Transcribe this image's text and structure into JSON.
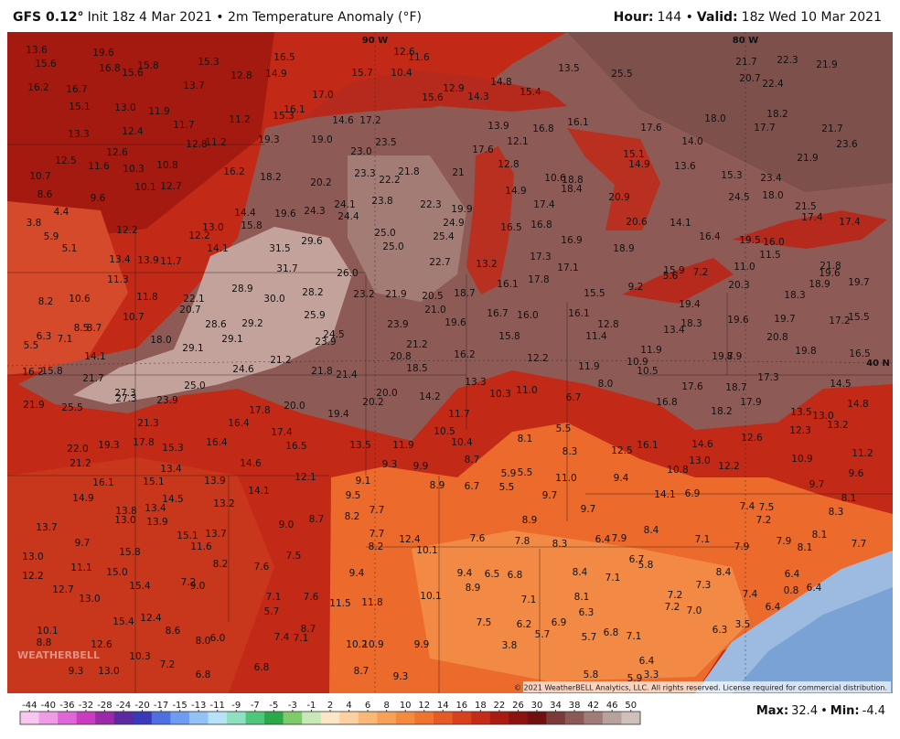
{
  "header": {
    "left": [
      {
        "text": "GFS 0.12°",
        "bold": true
      },
      {
        "text": "Init 18z 4 Mar 2021 • 2m Temperature Anomaly (°F)",
        "bold": false
      }
    ],
    "right": [
      {
        "text": "Hour:",
        "bold": true
      },
      {
        "text": "144 •",
        "bold": false
      },
      {
        "text": "Valid:",
        "bold": true
      },
      {
        "text": "18z Wed 10 Mar 2021",
        "bold": false
      }
    ]
  },
  "map": {
    "lon_labels": [
      "90 W",
      "80 W"
    ],
    "lat_label": "40 N",
    "logo": "WEATHERBELL",
    "copyright": "© 2021 WeatherBELL Analytics, LLC. All rights reserved. License required for commercial distribution.",
    "labels": [
      "13.6",
      "15.6",
      "19.6",
      "16.8",
      "15.6",
      "15.8",
      "15.3",
      "16.5",
      "12.6",
      "11.6",
      "16.2",
      "16.7",
      "13.7",
      "12.8",
      "14.9",
      "15.7",
      "10.4",
      "15.1",
      "13.0",
      "11.9",
      "17.0",
      "15.3",
      "16.1",
      "14.6",
      "17.2",
      "15.6",
      "12.9",
      "14.3",
      "14.8",
      "15.4",
      "13.5",
      "25.5",
      "21.7",
      "22.3",
      "21.9",
      "20.7",
      "22.4",
      "13.3",
      "12.4",
      "11.7",
      "11.2",
      "12.8",
      "11.2",
      "19.3",
      "19.0",
      "23.5",
      "23.0",
      "13.9",
      "12.1",
      "16.8",
      "16.1",
      "17.6",
      "18.0",
      "17.7",
      "18.2",
      "21.7",
      "23.6",
      "12.5",
      "11.6",
      "10.3",
      "10.8",
      "12.6",
      "10.7",
      "10.1",
      "12.7",
      "16.2",
      "18.2",
      "20.2",
      "23.3",
      "22.2",
      "21.8",
      "21",
      "17.6",
      "12.8",
      "10.6",
      "18.8",
      "18.4",
      "15.1",
      "14.9",
      "14.0",
      "13.6",
      "15.3",
      "23.4",
      "21.9",
      "8.6",
      "9.6",
      "4.4",
      "3.8",
      "5.9",
      "12.2",
      "13.0",
      "14.4",
      "15.8",
      "19.6",
      "24.3",
      "24.1",
      "24.4",
      "23.8",
      "22.3",
      "19.9",
      "24.9",
      "14.9",
      "17.4",
      "16.5",
      "16.8",
      "16.9",
      "20.9",
      "20.6",
      "14.1",
      "24.5",
      "18.0",
      "21.5",
      "17.4",
      "17.4",
      "5.1",
      "13.4",
      "13.9",
      "11.7",
      "12.2",
      "14.1",
      "31.5",
      "29.6",
      "25.0",
      "25.0",
      "25.4",
      "22.7",
      "16.4",
      "19.5",
      "16.0",
      "11.5",
      "18.9",
      "17.3",
      "17.1",
      "13.2",
      "21.8",
      "11.3",
      "31.7",
      "26.0",
      "28.9",
      "30.0",
      "28.2",
      "23.2",
      "21.9",
      "20.5",
      "18.7",
      "16.1",
      "17.8",
      "15.9",
      "7.2",
      "11.0",
      "20.3",
      "15.5",
      "9.2",
      "5.6",
      "18.3",
      "18.9",
      "19.6",
      "19.7",
      "8.2",
      "10.6",
      "11.8",
      "22.1",
      "20.7",
      "25.9",
      "21.0",
      "16.7",
      "16.0",
      "16.1",
      "19.4",
      "19.6",
      "19.7",
      "17.2",
      "15.5",
      "10.7",
      "28.6",
      "29.2",
      "23.9",
      "19.6",
      "12.8",
      "18.3",
      "13.4",
      "6.3",
      "7.1",
      "8.5",
      "8.7",
      "5.5",
      "18.0",
      "29.1",
      "24.5",
      "23.9",
      "15.8",
      "11.4",
      "20.8",
      "14.1",
      "29.1",
      "21.2",
      "20.8",
      "16.2",
      "12.2",
      "11.9",
      "10.9",
      "10.5",
      "19.7",
      "8.9",
      "19.8",
      "16.5",
      "16.2",
      "15.8",
      "21.7",
      "24.6",
      "21.2",
      "21.8",
      "21.4",
      "18.5",
      "11.9",
      "17.3",
      "14.5",
      "21.9",
      "25.5",
      "27.3",
      "27.3",
      "23.9",
      "25.0",
      "20.0",
      "20.2",
      "14.2",
      "13.3",
      "10.3",
      "11.0",
      "6.7",
      "8.0",
      "16.8",
      "17.6",
      "18.7",
      "17.9",
      "18.2",
      "13.5",
      "13.0",
      "14.8",
      "17.8",
      "20.0",
      "19.4",
      "11.7",
      "21.3",
      "16.4",
      "17.4",
      "12.3",
      "13.2",
      "5.5",
      "22.0",
      "19.3",
      "17.8",
      "15.3",
      "16.4",
      "16.5",
      "13.5",
      "11.9",
      "10.5",
      "10.4",
      "8.1",
      "8.3",
      "12.5",
      "16.1",
      "14.6",
      "12.6",
      "10.9",
      "11.2",
      "21.2",
      "13.4",
      "14.6",
      "9.3",
      "9.9",
      "8.7",
      "13.0",
      "12.2",
      "9.6",
      "16.1",
      "15.1",
      "13.9",
      "12.1",
      "9.1",
      "5.9",
      "5.5",
      "11.0",
      "9.4",
      "10.8",
      "9.7",
      "8.9",
      "6.7",
      "5.5",
      "14.1",
      "9.5",
      "9.7",
      "14.1",
      "6.9",
      "8.1",
      "14.9",
      "14.5",
      "13.2",
      "13.8",
      "13.4",
      "9.7",
      "7.4",
      "7.5",
      "8.3",
      "13.7",
      "13.0",
      "13.9",
      "9.0",
      "8.7",
      "8.2",
      "7.7",
      "8.9",
      "7.2",
      "15.1",
      "13.7",
      "11.6",
      "9.7",
      "7.7",
      "12.4",
      "10.1",
      "7.6",
      "7.8",
      "8.3",
      "6.4",
      "7.9",
      "8.4",
      "7.1",
      "7.9",
      "7.9",
      "8.1",
      "8.1",
      "15.8",
      "13.0",
      "8.2",
      "7.5",
      "8.2",
      "6.7",
      "5.8",
      "7.7",
      "11.1",
      "15.0",
      "7.6",
      "9.4",
      "9.4",
      "6.5",
      "6.8",
      "8.4",
      "7.1",
      "8.4",
      "6.4",
      "12.2",
      "7.2",
      "15.4",
      "9.0",
      "12.7",
      "8.9",
      "7.3",
      "0.8",
      "6.4",
      "13.0",
      "7.1",
      "7.6",
      "11.5",
      "11.8",
      "10.1",
      "7.1",
      "8.1",
      "7.2",
      "7.4",
      "6.4",
      "7.2",
      "7.0",
      "12.4",
      "5.7",
      "6.3",
      "15.4",
      "7.5",
      "6.2",
      "6.9",
      "3.5",
      "6.3",
      "10.1",
      "8.6",
      "8.7",
      "7.4",
      "7.1",
      "5.7",
      "5.7",
      "6.8",
      "7.1",
      "8.8",
      "12.6",
      "8.0",
      "6.0",
      "10.2",
      "10.9",
      "9.9",
      "3.8",
      "10.3",
      "7.2",
      "6.8",
      "6.4",
      "9.3",
      "13.0",
      "6.8",
      "8.7",
      "9.3",
      "5.8",
      "3.3",
      "5.9"
    ]
  },
  "colorbar": {
    "ticks": [
      -44,
      -40,
      -36,
      -32,
      -28,
      -24,
      -20,
      -17,
      -15,
      -13,
      -11,
      -9,
      -7,
      -5,
      -3,
      -1,
      2,
      4,
      6,
      8,
      10,
      12,
      14,
      16,
      18,
      22,
      26,
      30,
      34,
      38,
      42,
      46,
      50
    ],
    "colors": [
      "#f9c6f0",
      "#f09be6",
      "#e065d6",
      "#c93cbf",
      "#9b2aa8",
      "#5c2aa0",
      "#3a3ab8",
      "#4f6ee0",
      "#6d9cf0",
      "#93c3f5",
      "#b8e2f8",
      "#8ee0c0",
      "#4fc77a",
      "#2aa84a",
      "#7fcb6a",
      "#c8e8b8",
      "#fde6c8",
      "#fcd0a0",
      "#f9b878",
      "#f7a058",
      "#f38a3e",
      "#ee7430",
      "#e65a26",
      "#d8401e",
      "#c42c18",
      "#a81c12",
      "#8c1410",
      "#701010",
      "#7a3a38",
      "#8c5a56",
      "#a07c78",
      "#b8a09c",
      "#d0c0bc"
    ]
  },
  "footer": {
    "max_label": "Max:",
    "max": "32.4",
    "separator": "•",
    "min_label": "Min:",
    "min": "-4.4"
  }
}
